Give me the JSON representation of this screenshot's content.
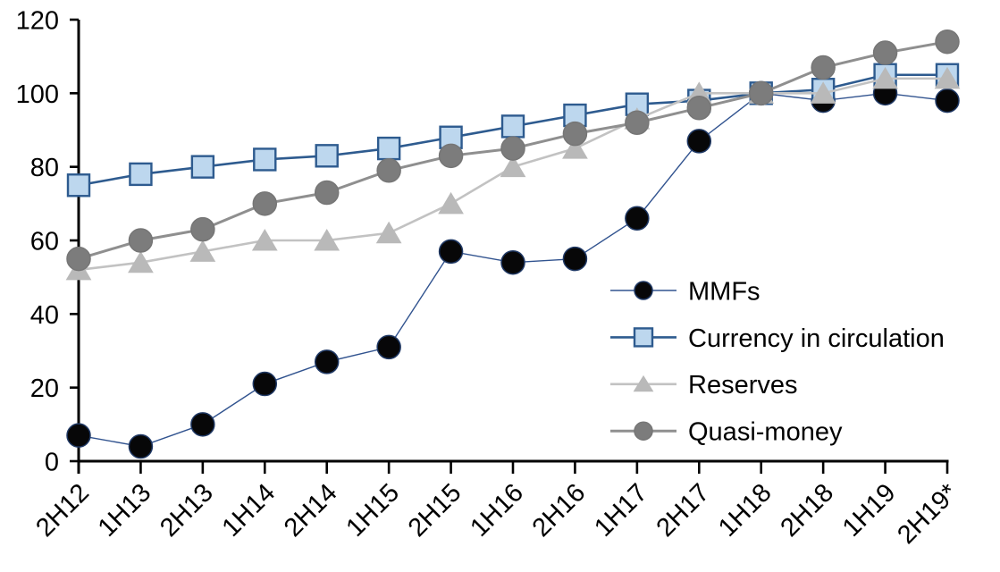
{
  "chart_data": {
    "type": "line",
    "title": "",
    "xlabel": "",
    "ylabel": "",
    "categories": [
      "2H12",
      "1H13",
      "2H13",
      "1H14",
      "2H14",
      "1H15",
      "2H15",
      "1H16",
      "2H16",
      "1H17",
      "2H17",
      "1H18",
      "2H18",
      "1H19",
      "2H19*"
    ],
    "series": [
      {
        "name": "MMFs",
        "marker": "circle",
        "values": [
          7,
          4,
          10,
          21,
          27,
          31,
          57,
          54,
          55,
          66,
          87,
          100,
          98,
          100,
          98
        ],
        "line_color": "#31538F",
        "line_width": 1.4,
        "marker_fill": "#070708",
        "marker_stroke": "#1F3864",
        "marker_size": 13
      },
      {
        "name": "Currency in circulation",
        "marker": "square",
        "values": [
          75,
          78,
          80,
          82,
          83,
          85,
          88,
          91,
          94,
          97,
          98,
          100,
          101,
          105,
          105
        ],
        "line_color": "#2E5B8F",
        "line_width": 2.6,
        "marker_fill": "#BDD7EE",
        "marker_stroke": "#2E5B8F",
        "marker_size": 12
      },
      {
        "name": "Reserves",
        "marker": "triangle",
        "values": [
          52,
          54,
          57,
          60,
          60,
          62,
          70,
          80,
          85,
          93,
          100,
          100,
          100,
          104,
          104
        ],
        "line_color": "#C2C2C2",
        "line_width": 2.6,
        "marker_fill": "#B9B9B9",
        "marker_stroke": "#B9B9B9",
        "marker_size": 13
      },
      {
        "name": "Quasi-money",
        "marker": "circle",
        "values": [
          55,
          60,
          63,
          70,
          73,
          79,
          83,
          85,
          89,
          92,
          96,
          100,
          107,
          111,
          114
        ],
        "line_color": "#8F8F8F",
        "line_width": 3,
        "marker_fill": "#7C7C7C",
        "marker_stroke": "#767676",
        "marker_size": 13
      }
    ],
    "ylim": [
      0,
      120
    ],
    "yticks": [
      0,
      20,
      40,
      60,
      80,
      100,
      120
    ],
    "grid": false,
    "legend_position": "inside-right",
    "axis_color": "#000000",
    "text_color": "#000000",
    "background_color": "#FFFFFF"
  }
}
